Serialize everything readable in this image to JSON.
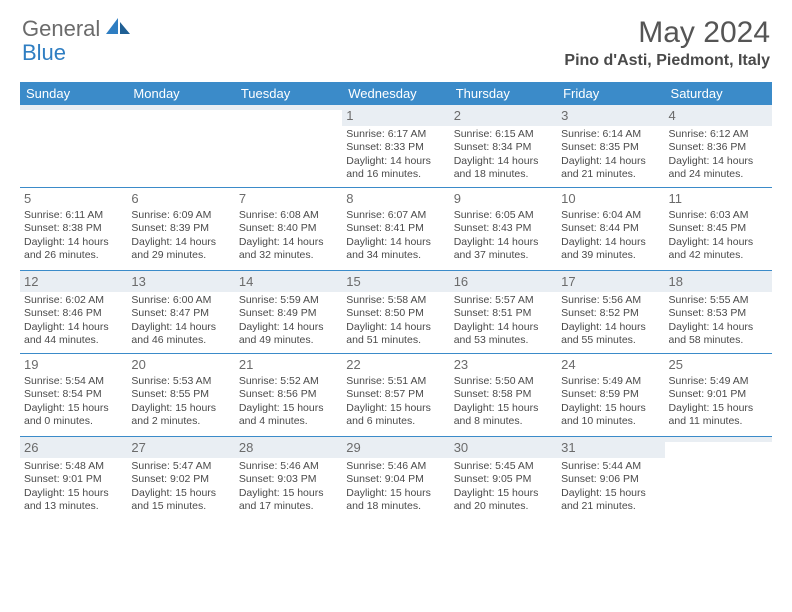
{
  "brand": {
    "part1": "General",
    "part2": "Blue"
  },
  "title": "May 2024",
  "location": "Pino d'Asti, Piedmont, Italy",
  "colors": {
    "header_bg": "#3b8bc9",
    "header_text": "#ffffff",
    "shade_bg": "#e9eef3",
    "rule": "#3b8bc9",
    "text": "#4a4a4a",
    "brand_grey": "#6b6b6b",
    "brand_blue": "#2f7ec2"
  },
  "day_headers": [
    "Sunday",
    "Monday",
    "Tuesday",
    "Wednesday",
    "Thursday",
    "Friday",
    "Saturday"
  ],
  "weeks": [
    [
      {
        "day": "",
        "sunrise": "",
        "sunset": "",
        "daylight1": "",
        "daylight2": ""
      },
      {
        "day": "",
        "sunrise": "",
        "sunset": "",
        "daylight1": "",
        "daylight2": ""
      },
      {
        "day": "",
        "sunrise": "",
        "sunset": "",
        "daylight1": "",
        "daylight2": ""
      },
      {
        "day": "1",
        "sunrise": "Sunrise: 6:17 AM",
        "sunset": "Sunset: 8:33 PM",
        "daylight1": "Daylight: 14 hours",
        "daylight2": "and 16 minutes."
      },
      {
        "day": "2",
        "sunrise": "Sunrise: 6:15 AM",
        "sunset": "Sunset: 8:34 PM",
        "daylight1": "Daylight: 14 hours",
        "daylight2": "and 18 minutes."
      },
      {
        "day": "3",
        "sunrise": "Sunrise: 6:14 AM",
        "sunset": "Sunset: 8:35 PM",
        "daylight1": "Daylight: 14 hours",
        "daylight2": "and 21 minutes."
      },
      {
        "day": "4",
        "sunrise": "Sunrise: 6:12 AM",
        "sunset": "Sunset: 8:36 PM",
        "daylight1": "Daylight: 14 hours",
        "daylight2": "and 24 minutes."
      }
    ],
    [
      {
        "day": "5",
        "sunrise": "Sunrise: 6:11 AM",
        "sunset": "Sunset: 8:38 PM",
        "daylight1": "Daylight: 14 hours",
        "daylight2": "and 26 minutes."
      },
      {
        "day": "6",
        "sunrise": "Sunrise: 6:09 AM",
        "sunset": "Sunset: 8:39 PM",
        "daylight1": "Daylight: 14 hours",
        "daylight2": "and 29 minutes."
      },
      {
        "day": "7",
        "sunrise": "Sunrise: 6:08 AM",
        "sunset": "Sunset: 8:40 PM",
        "daylight1": "Daylight: 14 hours",
        "daylight2": "and 32 minutes."
      },
      {
        "day": "8",
        "sunrise": "Sunrise: 6:07 AM",
        "sunset": "Sunset: 8:41 PM",
        "daylight1": "Daylight: 14 hours",
        "daylight2": "and 34 minutes."
      },
      {
        "day": "9",
        "sunrise": "Sunrise: 6:05 AM",
        "sunset": "Sunset: 8:43 PM",
        "daylight1": "Daylight: 14 hours",
        "daylight2": "and 37 minutes."
      },
      {
        "day": "10",
        "sunrise": "Sunrise: 6:04 AM",
        "sunset": "Sunset: 8:44 PM",
        "daylight1": "Daylight: 14 hours",
        "daylight2": "and 39 minutes."
      },
      {
        "day": "11",
        "sunrise": "Sunrise: 6:03 AM",
        "sunset": "Sunset: 8:45 PM",
        "daylight1": "Daylight: 14 hours",
        "daylight2": "and 42 minutes."
      }
    ],
    [
      {
        "day": "12",
        "sunrise": "Sunrise: 6:02 AM",
        "sunset": "Sunset: 8:46 PM",
        "daylight1": "Daylight: 14 hours",
        "daylight2": "and 44 minutes."
      },
      {
        "day": "13",
        "sunrise": "Sunrise: 6:00 AM",
        "sunset": "Sunset: 8:47 PM",
        "daylight1": "Daylight: 14 hours",
        "daylight2": "and 46 minutes."
      },
      {
        "day": "14",
        "sunrise": "Sunrise: 5:59 AM",
        "sunset": "Sunset: 8:49 PM",
        "daylight1": "Daylight: 14 hours",
        "daylight2": "and 49 minutes."
      },
      {
        "day": "15",
        "sunrise": "Sunrise: 5:58 AM",
        "sunset": "Sunset: 8:50 PM",
        "daylight1": "Daylight: 14 hours",
        "daylight2": "and 51 minutes."
      },
      {
        "day": "16",
        "sunrise": "Sunrise: 5:57 AM",
        "sunset": "Sunset: 8:51 PM",
        "daylight1": "Daylight: 14 hours",
        "daylight2": "and 53 minutes."
      },
      {
        "day": "17",
        "sunrise": "Sunrise: 5:56 AM",
        "sunset": "Sunset: 8:52 PM",
        "daylight1": "Daylight: 14 hours",
        "daylight2": "and 55 minutes."
      },
      {
        "day": "18",
        "sunrise": "Sunrise: 5:55 AM",
        "sunset": "Sunset: 8:53 PM",
        "daylight1": "Daylight: 14 hours",
        "daylight2": "and 58 minutes."
      }
    ],
    [
      {
        "day": "19",
        "sunrise": "Sunrise: 5:54 AM",
        "sunset": "Sunset: 8:54 PM",
        "daylight1": "Daylight: 15 hours",
        "daylight2": "and 0 minutes."
      },
      {
        "day": "20",
        "sunrise": "Sunrise: 5:53 AM",
        "sunset": "Sunset: 8:55 PM",
        "daylight1": "Daylight: 15 hours",
        "daylight2": "and 2 minutes."
      },
      {
        "day": "21",
        "sunrise": "Sunrise: 5:52 AM",
        "sunset": "Sunset: 8:56 PM",
        "daylight1": "Daylight: 15 hours",
        "daylight2": "and 4 minutes."
      },
      {
        "day": "22",
        "sunrise": "Sunrise: 5:51 AM",
        "sunset": "Sunset: 8:57 PM",
        "daylight1": "Daylight: 15 hours",
        "daylight2": "and 6 minutes."
      },
      {
        "day": "23",
        "sunrise": "Sunrise: 5:50 AM",
        "sunset": "Sunset: 8:58 PM",
        "daylight1": "Daylight: 15 hours",
        "daylight2": "and 8 minutes."
      },
      {
        "day": "24",
        "sunrise": "Sunrise: 5:49 AM",
        "sunset": "Sunset: 8:59 PM",
        "daylight1": "Daylight: 15 hours",
        "daylight2": "and 10 minutes."
      },
      {
        "day": "25",
        "sunrise": "Sunrise: 5:49 AM",
        "sunset": "Sunset: 9:01 PM",
        "daylight1": "Daylight: 15 hours",
        "daylight2": "and 11 minutes."
      }
    ],
    [
      {
        "day": "26",
        "sunrise": "Sunrise: 5:48 AM",
        "sunset": "Sunset: 9:01 PM",
        "daylight1": "Daylight: 15 hours",
        "daylight2": "and 13 minutes."
      },
      {
        "day": "27",
        "sunrise": "Sunrise: 5:47 AM",
        "sunset": "Sunset: 9:02 PM",
        "daylight1": "Daylight: 15 hours",
        "daylight2": "and 15 minutes."
      },
      {
        "day": "28",
        "sunrise": "Sunrise: 5:46 AM",
        "sunset": "Sunset: 9:03 PM",
        "daylight1": "Daylight: 15 hours",
        "daylight2": "and 17 minutes."
      },
      {
        "day": "29",
        "sunrise": "Sunrise: 5:46 AM",
        "sunset": "Sunset: 9:04 PM",
        "daylight1": "Daylight: 15 hours",
        "daylight2": "and 18 minutes."
      },
      {
        "day": "30",
        "sunrise": "Sunrise: 5:45 AM",
        "sunset": "Sunset: 9:05 PM",
        "daylight1": "Daylight: 15 hours",
        "daylight2": "and 20 minutes."
      },
      {
        "day": "31",
        "sunrise": "Sunrise: 5:44 AM",
        "sunset": "Sunset: 9:06 PM",
        "daylight1": "Daylight: 15 hours",
        "daylight2": "and 21 minutes."
      },
      {
        "day": "",
        "sunrise": "",
        "sunset": "",
        "daylight1": "",
        "daylight2": ""
      }
    ]
  ]
}
